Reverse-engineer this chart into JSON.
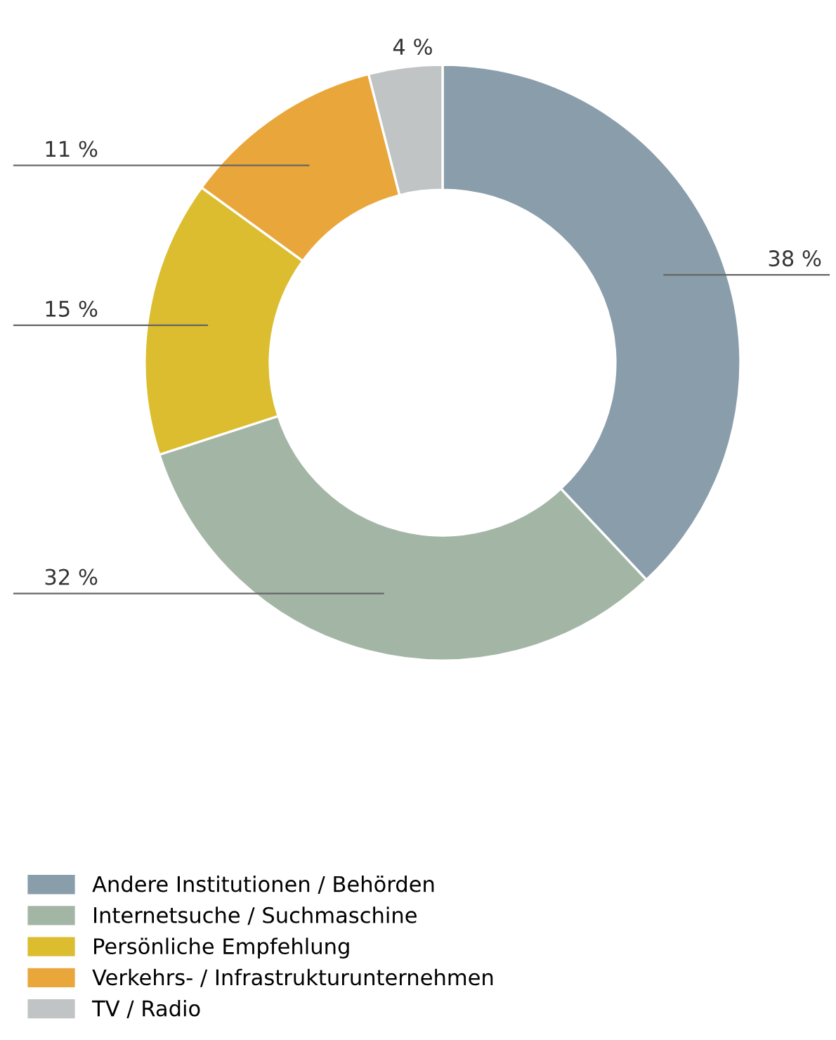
{
  "chart_data": {
    "type": "donut",
    "categories": [
      "Andere Institutionen / Behörden",
      "Internetsuche / Suchmaschine",
      "Persönliche Empfehlung",
      "Verkehrs- / Infrastrukturunternehmen",
      "TV / Radio"
    ],
    "values": [
      38,
      32,
      15,
      11,
      4
    ],
    "value_labels": [
      "38 %",
      "32 %",
      "15 %",
      "11 %",
      "4 %"
    ],
    "colors": [
      "#8a9dab",
      "#a3b6a6",
      "#dbbd2f",
      "#e9a63b",
      "#c0c4c4"
    ],
    "legend": "bottom"
  }
}
